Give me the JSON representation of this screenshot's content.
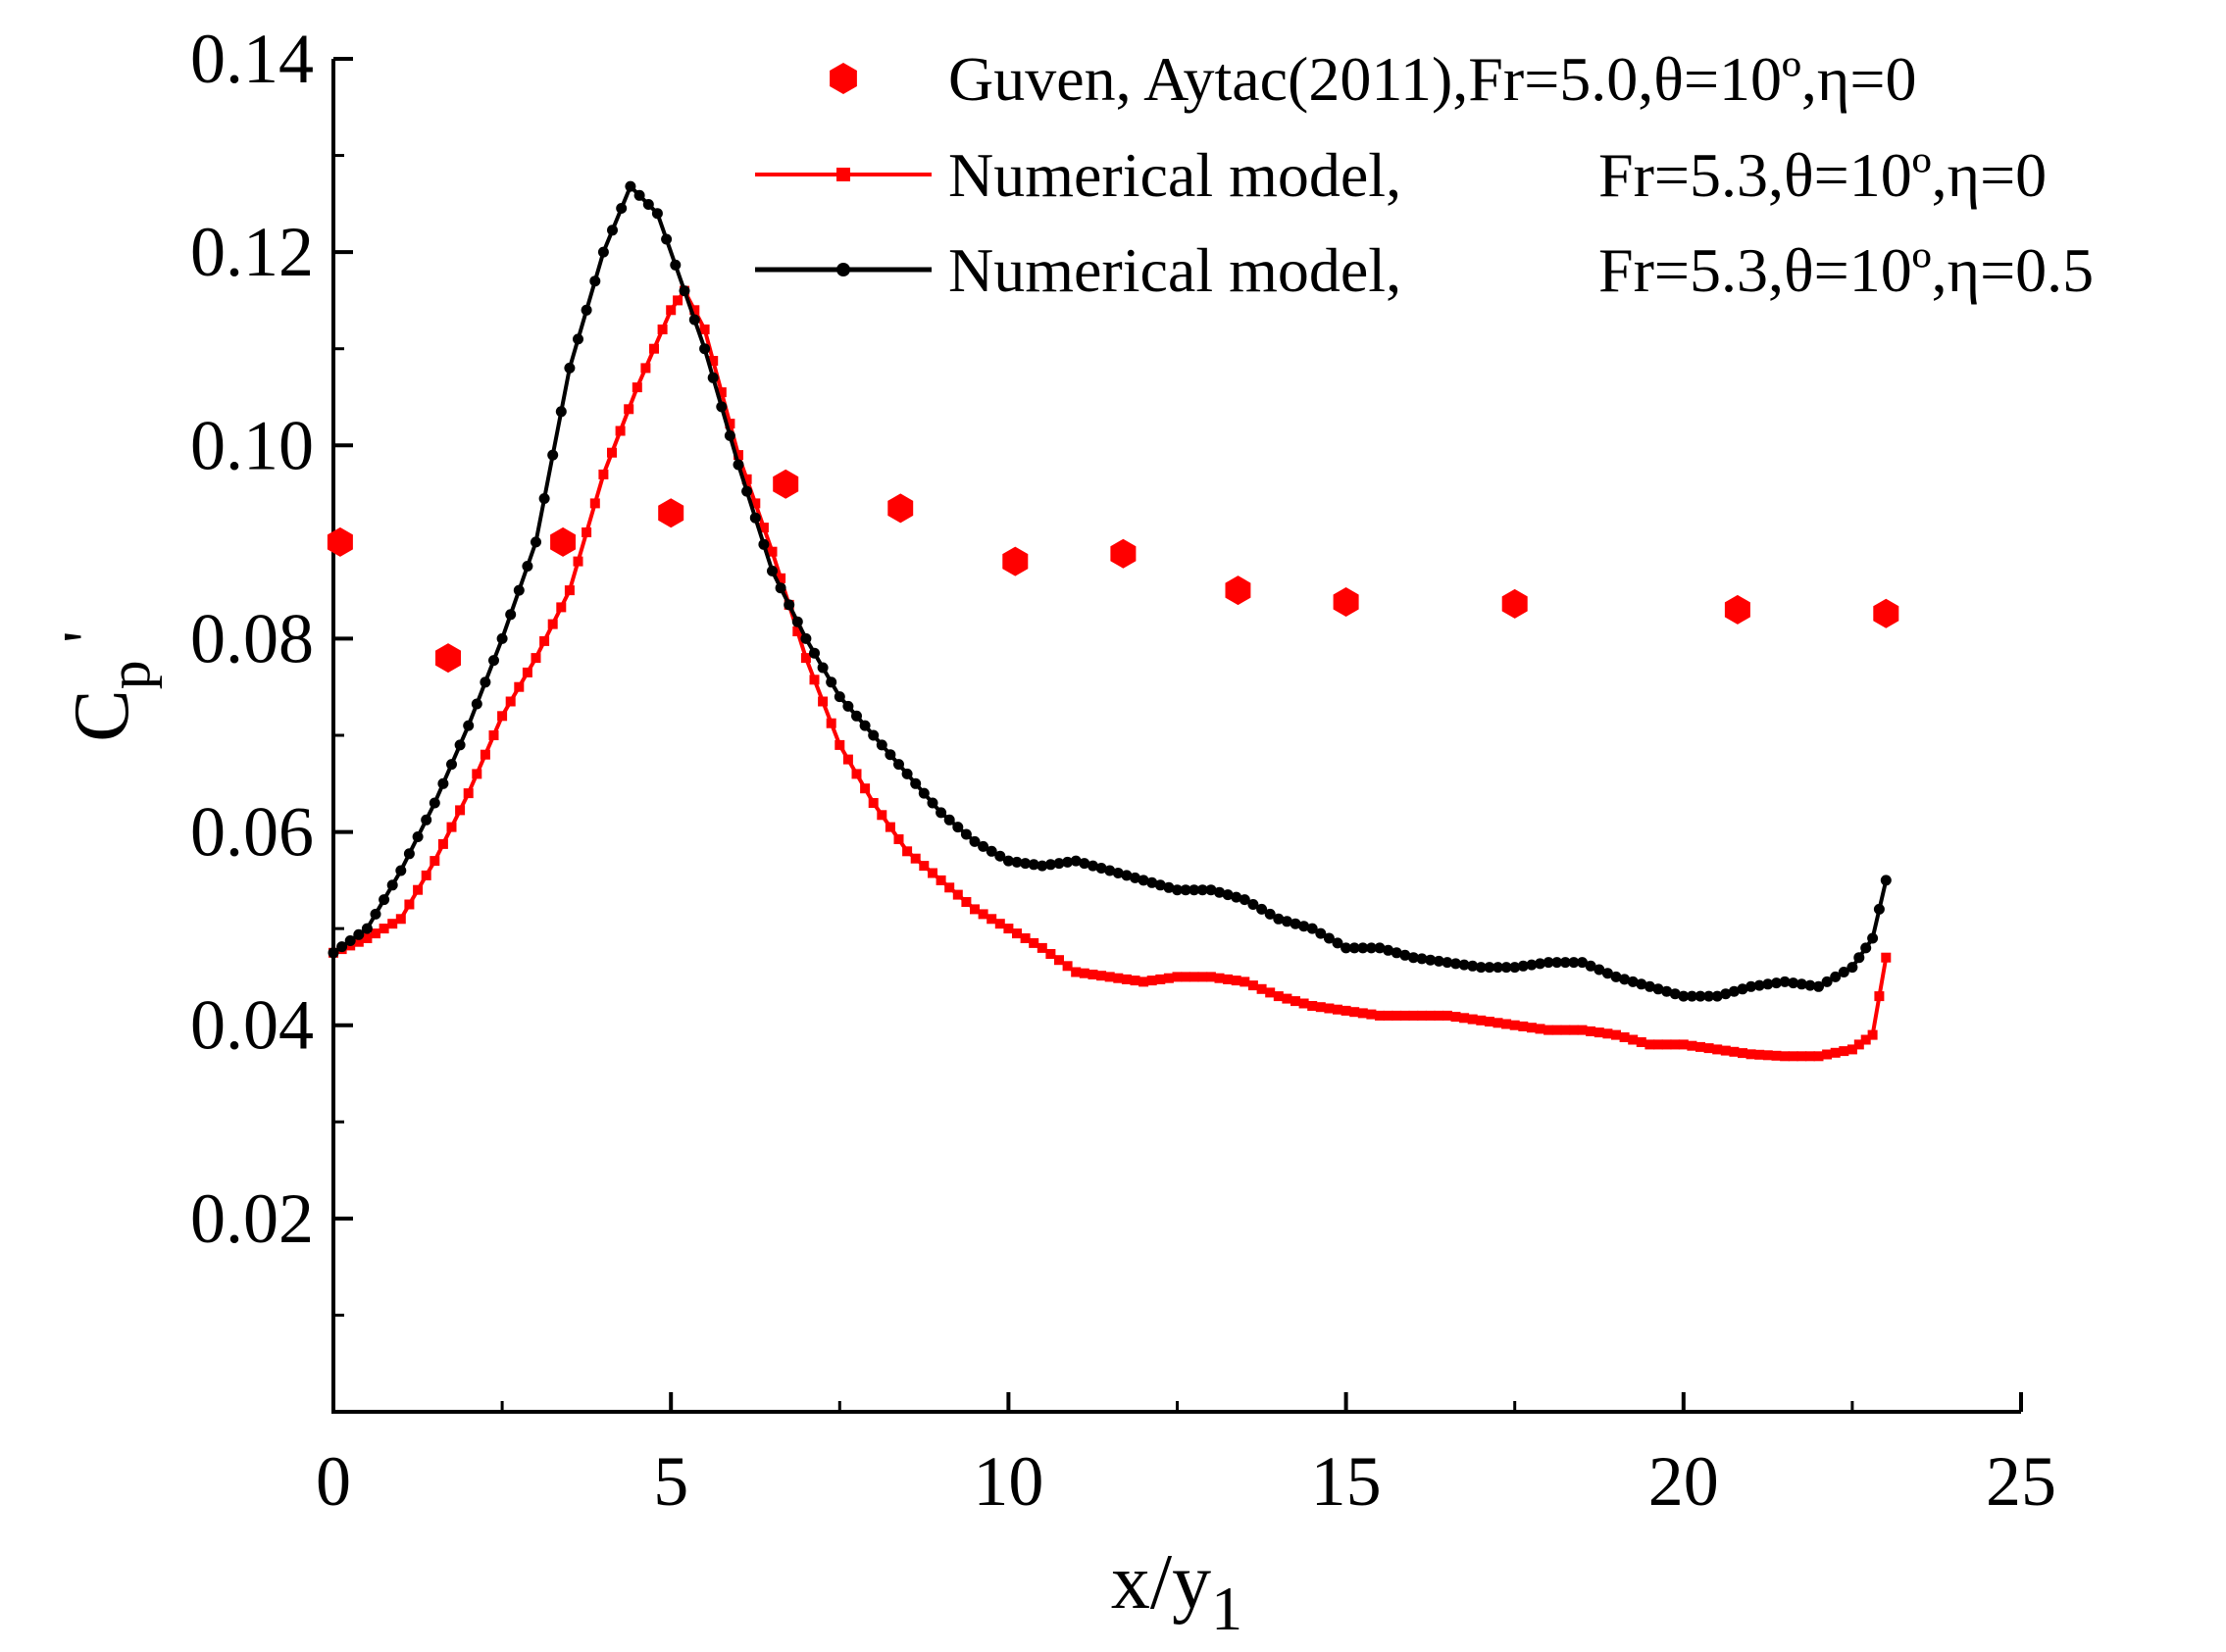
{
  "chart_data": {
    "type": "line",
    "title": "",
    "xlabel": "x/y1",
    "ylabel": "Cp'",
    "xlim": [
      0,
      25
    ],
    "ylim": [
      0,
      0.14
    ],
    "xticks": [
      {
        "value": 0,
        "label": "0"
      },
      {
        "value": 5,
        "label": "5"
      },
      {
        "value": 10,
        "label": "10"
      },
      {
        "value": 15,
        "label": "15"
      },
      {
        "value": 20,
        "label": "20"
      },
      {
        "value": 25,
        "label": "25"
      }
    ],
    "yticks": [
      {
        "value": 0.02,
        "label": "0.02"
      },
      {
        "value": 0.04,
        "label": "0.04"
      },
      {
        "value": 0.06,
        "label": "0.06"
      },
      {
        "value": 0.08,
        "label": "0.08"
      },
      {
        "value": 0.1,
        "label": "0.10"
      },
      {
        "value": 0.12,
        "label": "0.12"
      },
      {
        "value": 0.14,
        "label": "0.14"
      }
    ],
    "grid": false,
    "legend_position": "top-right",
    "series": [
      {
        "name": "Guven, Aytac(2011),Fr=5.0,θ=10º,η=0",
        "legend_label": "Guven, Aytac(2011),Fr=5.0,θ=10º,η=0",
        "style": "markers",
        "marker": "hexagon",
        "color": "#ff0000",
        "x": [
          0.1,
          1.7,
          3.4,
          5.0,
          6.7,
          8.4,
          10.1,
          11.7,
          13.4,
          15.0,
          17.5,
          20.8,
          23.0
        ],
        "y": [
          0.09,
          0.078,
          0.09,
          0.093,
          0.096,
          0.0935,
          0.088,
          0.0888,
          0.085,
          0.0838,
          0.0836,
          0.083,
          0.0826
        ]
      },
      {
        "name": "Numerical model, Fr=5.3,θ=10º,η=0",
        "legend_label": "Numerical model,",
        "legend_params": "Fr=5.3,θ=10º,η=0",
        "style": "line-marker",
        "marker": "square",
        "color": "#ff0000",
        "x": [
          0,
          0.5,
          1.0,
          1.5,
          2.0,
          2.5,
          3.0,
          3.5,
          4.0,
          4.5,
          5.0,
          5.2,
          5.5,
          6.0,
          6.5,
          7.0,
          7.5,
          8.0,
          8.5,
          9.0,
          9.5,
          10.0,
          10.5,
          11.0,
          11.5,
          12.0,
          12.5,
          13.0,
          13.5,
          14.0,
          14.5,
          15.0,
          15.5,
          16.0,
          16.5,
          17.0,
          17.5,
          18.0,
          18.5,
          19.0,
          19.5,
          20.0,
          20.5,
          21.0,
          21.5,
          22.0,
          22.5,
          22.8,
          23.0
        ],
        "y": [
          0.0475,
          0.049,
          0.051,
          0.057,
          0.064,
          0.072,
          0.078,
          0.085,
          0.097,
          0.106,
          0.114,
          0.116,
          0.112,
          0.099,
          0.089,
          0.078,
          0.069,
          0.063,
          0.058,
          0.055,
          0.052,
          0.05,
          0.048,
          0.0455,
          0.045,
          0.0445,
          0.045,
          0.045,
          0.0445,
          0.043,
          0.042,
          0.0415,
          0.041,
          0.041,
          0.041,
          0.0405,
          0.04,
          0.0395,
          0.0395,
          0.039,
          0.038,
          0.038,
          0.0375,
          0.037,
          0.0368,
          0.0368,
          0.0375,
          0.039,
          0.047
        ]
      },
      {
        "name": "Numerical model, Fr=5.3,θ=10º,η=0.5",
        "legend_label": "Numerical model,",
        "legend_params": "Fr=5.3,θ=10º,η=0.5",
        "style": "line-marker",
        "marker": "circle",
        "color": "#000000",
        "x": [
          0,
          0.5,
          1.0,
          1.5,
          2.0,
          2.5,
          3.0,
          3.5,
          4.0,
          4.4,
          4.8,
          5.2,
          5.5,
          6.0,
          6.5,
          7.0,
          7.5,
          8.0,
          8.5,
          9.0,
          9.5,
          10.0,
          10.5,
          11.0,
          11.5,
          12.0,
          12.5,
          13.0,
          13.5,
          14.0,
          14.5,
          15.0,
          15.5,
          16.0,
          16.5,
          17.0,
          17.5,
          18.0,
          18.5,
          19.0,
          19.5,
          20.0,
          20.5,
          21.0,
          21.5,
          22.0,
          22.5,
          22.8,
          23.0
        ],
        "y": [
          0.0475,
          0.05,
          0.056,
          0.063,
          0.071,
          0.08,
          0.09,
          0.108,
          0.12,
          0.1268,
          0.124,
          0.116,
          0.11,
          0.098,
          0.087,
          0.08,
          0.074,
          0.07,
          0.066,
          0.062,
          0.059,
          0.057,
          0.0565,
          0.057,
          0.056,
          0.055,
          0.054,
          0.054,
          0.053,
          0.051,
          0.05,
          0.048,
          0.048,
          0.047,
          0.0465,
          0.046,
          0.046,
          0.0465,
          0.0465,
          0.045,
          0.044,
          0.043,
          0.043,
          0.044,
          0.0445,
          0.044,
          0.046,
          0.049,
          0.055
        ]
      }
    ]
  }
}
